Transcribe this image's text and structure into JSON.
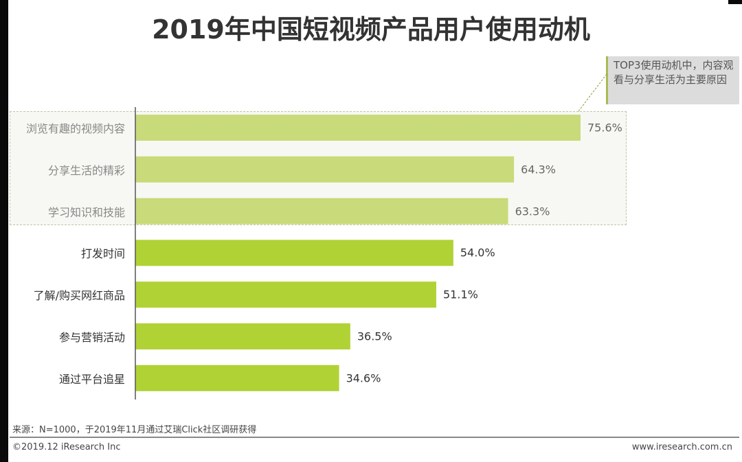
{
  "title": "2019年中国短视频产品用户使用动机",
  "callout": "TOP3使用动机中，内容观看与分享生活为主要原因",
  "footer": {
    "source": "来源：N=1000，于2019年11月通过艾瑞Click社区调研获得",
    "copyright": "©2019.12 iResearch Inc",
    "website": "www.iresearch.com.cn"
  },
  "colors": {
    "highlight_bar": "#c8da7a",
    "bar": "#b0d235",
    "highlight_text": "#888888",
    "text": "#333333"
  },
  "chart_data": {
    "type": "bar",
    "orientation": "horizontal",
    "title": "2019年中国短视频产品用户使用动机",
    "categories": [
      "浏览有趣的视频内容",
      "分享生活的精彩",
      "学习知识和技能",
      "打发时间",
      "了解/购买网红商品",
      "参与营销活动",
      "通过平台追星"
    ],
    "values": [
      75.6,
      64.3,
      63.3,
      54.0,
      51.1,
      36.5,
      34.6
    ],
    "labels": [
      "75.6%",
      "64.3%",
      "63.3%",
      "54.0%",
      "51.1%",
      "36.5%",
      "34.6%"
    ],
    "unit": "%",
    "highlighted": [
      0,
      1,
      2
    ],
    "xlim": [
      0,
      80
    ],
    "grid": false
  }
}
